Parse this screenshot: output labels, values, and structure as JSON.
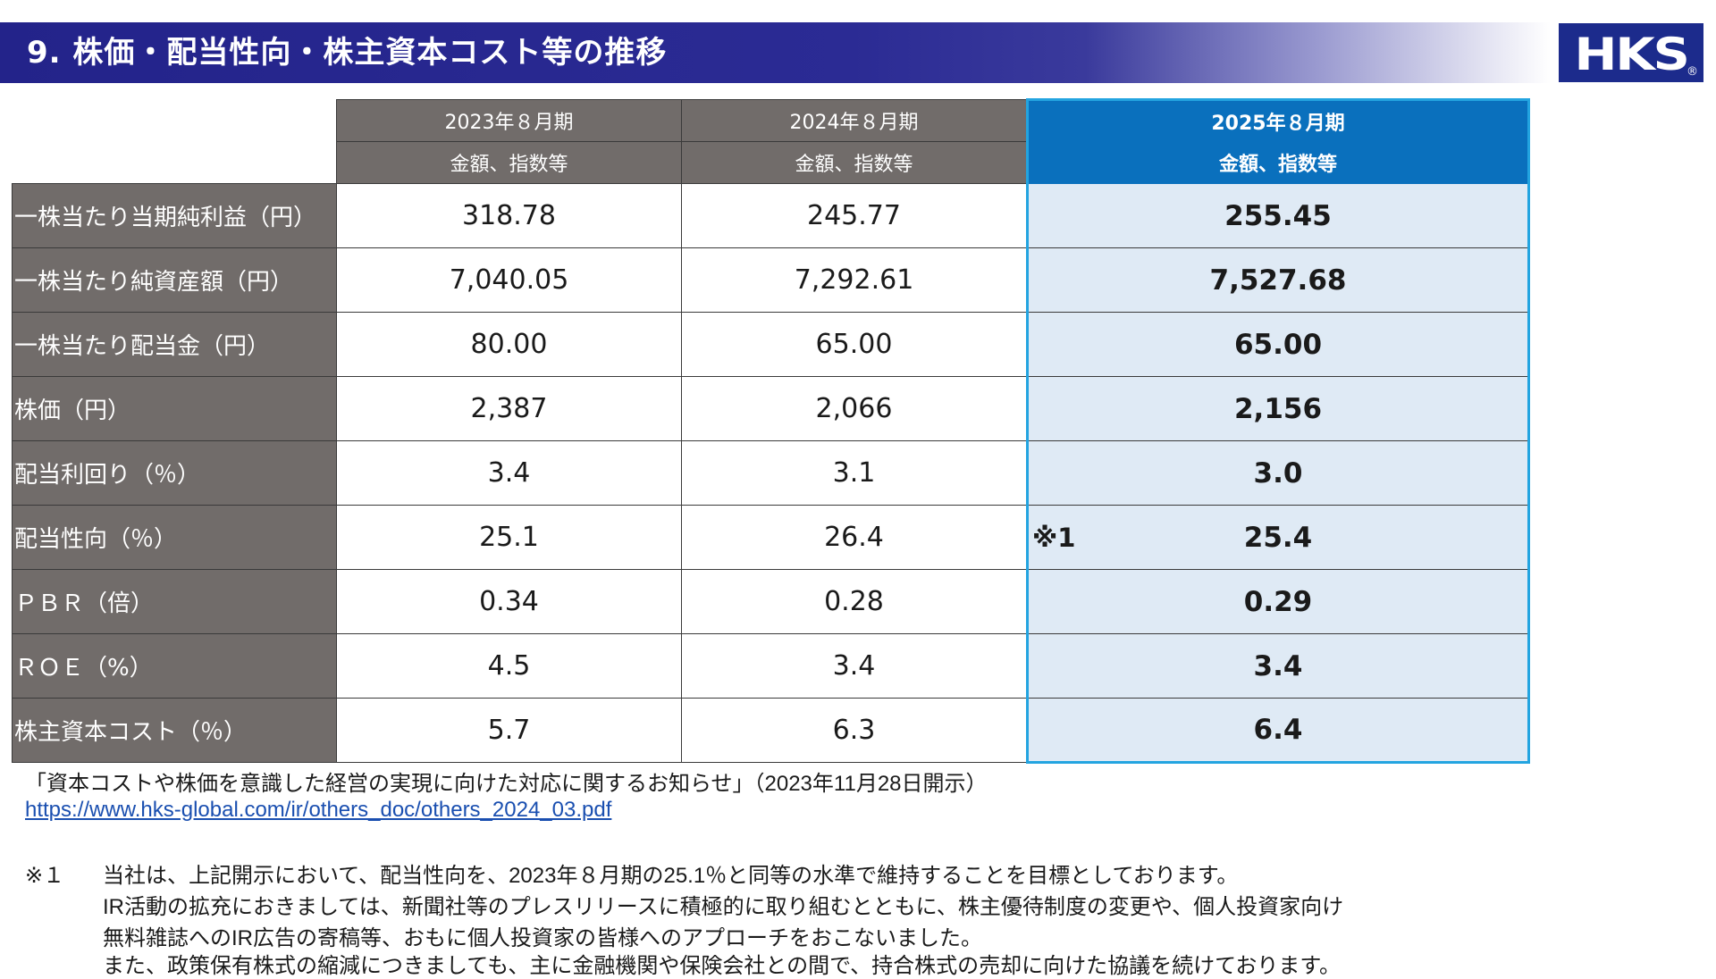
{
  "header": {
    "title": "9. 株価・配当性向・株主資本コスト等の推移",
    "logo_text": "HKS",
    "logo_reg": "®"
  },
  "table": {
    "columns": [
      {
        "period": "2023年８月期",
        "sub": "金額、指数等"
      },
      {
        "period": "2024年８月期",
        "sub": "金額、指数等"
      },
      {
        "period": "2025年８月期",
        "sub": "金額、指数等"
      }
    ],
    "rows": [
      {
        "label": "一株当たり当期純利益（円）",
        "values": [
          "318.78",
          "245.77",
          "255.45"
        ]
      },
      {
        "label": "一株当たり純資産額（円）",
        "values": [
          "7,040.05",
          "7,292.61",
          "7,527.68"
        ]
      },
      {
        "label": "一株当たり配当金（円）",
        "values": [
          "80.00",
          "65.00",
          "65.00"
        ]
      },
      {
        "label": "株価（円）",
        "values": [
          "2,387",
          "2,066",
          "2,156"
        ]
      },
      {
        "label": "配当利回り（％）",
        "values": [
          "3.4",
          "3.1",
          "3.0"
        ]
      },
      {
        "label": "配当性向（％）",
        "values": [
          "25.1",
          "26.4",
          "25.4"
        ],
        "note": "※1"
      },
      {
        "label": "ＰＢＲ（倍）",
        "values": [
          "0.34",
          "0.28",
          "0.29"
        ]
      },
      {
        "label": "ＲＯＥ（%）",
        "values": [
          "4.5",
          "3.4",
          "3.4"
        ]
      },
      {
        "label": "株主資本コスト（％）",
        "values": [
          "5.7",
          "6.3",
          "6.4"
        ]
      }
    ]
  },
  "footer": {
    "reference": "「資本コストや株価を意識した経営の実現に向けた対応に関するお知らせ」（2023年11月28日開示）",
    "link": "https://www.hks-global.com/ir/others_doc/others_2024_03.pdf",
    "note_mark": "※１",
    "note_lines": [
      "当社は、上記開示において、配当性向を、2023年８月期の25.1％と同等の水準で維持することを目標としております。",
      "IR活動の拡充におきましては、新聞社等のプレスリリースに積極的に取り組むとともに、株主優待制度の変更や、個人投資家向け",
      "無料雑誌へのIR広告の寄稿等、おもに個人投資家の皆様へのアプローチをおこないました。",
      "また、政策保有株式の縮減につきましても、主に金融機関や保険会社との間で、持合株式の売却に向けた協議を続けております。"
    ]
  },
  "colors": {
    "banner": "#2b2b94",
    "label_bg": "#716c6a",
    "highlight_header": "#0a70bd",
    "highlight_cell": "#dfeaf5",
    "highlight_border": "#23a4e0"
  }
}
